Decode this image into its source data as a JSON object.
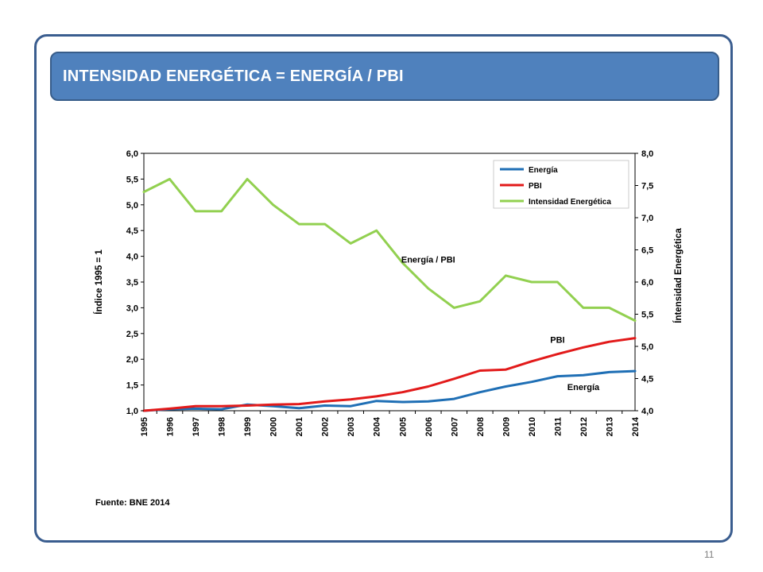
{
  "slide": {
    "title": "INTENSIDAD ENERGÉTICA = ENERGÍA / PBI",
    "source": "Fuente: BNE 2014",
    "page_number": "11"
  },
  "colors": {
    "title_bg": "#4f81bd",
    "frame": "#3a5d8f",
    "energia": "#1f6fb5",
    "pbi": "#e21a1a",
    "intensidad": "#92d050"
  },
  "chart_data": {
    "type": "line",
    "x": [
      "1995",
      "1996",
      "1997",
      "1998",
      "1999",
      "2000",
      "2001",
      "2002",
      "2003",
      "2004",
      "2005",
      "2006",
      "2007",
      "2008",
      "2009",
      "2010",
      "2011",
      "2012",
      "2013",
      "2014"
    ],
    "ylabel": "Índice 1995  = 1",
    "y2label": "Íntensidad Energética",
    "ylim": [
      1.0,
      6.0
    ],
    "y2lim": [
      4.0,
      8.0
    ],
    "yticks": [
      "1,0",
      "1,5",
      "2,0",
      "2,5",
      "3,0",
      "3,5",
      "4,0",
      "4,5",
      "5,0",
      "5,5",
      "6,0"
    ],
    "y2ticks": [
      "4,0",
      "4,5",
      "5,0",
      "5,5",
      "6,0",
      "6,5",
      "7,0",
      "7,5",
      "8,0"
    ],
    "legend_position": "top-right",
    "series": [
      {
        "name": "Energía",
        "axis": "left",
        "color": "#1f6fb5",
        "values": [
          1.0,
          1.03,
          1.04,
          1.03,
          1.12,
          1.09,
          1.05,
          1.1,
          1.09,
          1.19,
          1.17,
          1.18,
          1.23,
          1.36,
          1.47,
          1.56,
          1.67,
          1.69,
          1.75,
          1.77
        ]
      },
      {
        "name": "PBI",
        "axis": "left",
        "color": "#e21a1a",
        "values": [
          1.0,
          1.04,
          1.09,
          1.09,
          1.1,
          1.12,
          1.13,
          1.18,
          1.22,
          1.28,
          1.36,
          1.47,
          1.62,
          1.78,
          1.8,
          1.96,
          2.1,
          2.23,
          2.34,
          2.41
        ]
      },
      {
        "name": "Intensidad Energética",
        "axis": "right",
        "color": "#92d050",
        "values": [
          7.4,
          7.6,
          7.1,
          7.1,
          7.6,
          7.2,
          6.9,
          6.9,
          6.6,
          6.8,
          6.3,
          5.9,
          5.6,
          5.7,
          6.1,
          6.0,
          6.0,
          5.6,
          5.6,
          5.4
        ]
      }
    ],
    "annotations": [
      {
        "text": "Energía / PBI",
        "x": "2006",
        "y2": 6.3
      },
      {
        "text": "PBI",
        "x": "2011",
        "y": 2.32
      },
      {
        "text": "Energía",
        "x": "2012",
        "y": 1.4
      }
    ]
  }
}
